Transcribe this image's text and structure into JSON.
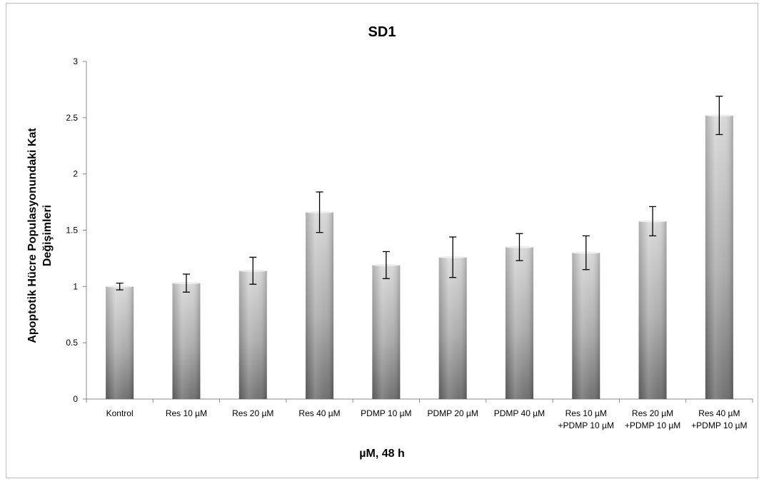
{
  "chart_data": {
    "type": "bar",
    "title": "SD1",
    "xlabel": "µM, 48 h",
    "ylabel_lines": [
      "Apoptotik Hücre Populasyonundaki Kat",
      "Değişimleri"
    ],
    "ylim": [
      0,
      3
    ],
    "yticks": [
      "0",
      "0.5",
      "1",
      "1.5",
      "2",
      "2.5",
      "3"
    ],
    "categories": [
      [
        "Kontrol"
      ],
      [
        "Res 10 µM"
      ],
      [
        "Res 20 µM"
      ],
      [
        "Res 40 µM"
      ],
      [
        "PDMP 10 µM"
      ],
      [
        "PDMP 20 µM"
      ],
      [
        "PDMP 40 µM"
      ],
      [
        "Res 10 µM",
        "+PDMP 10 µM"
      ],
      [
        "Res 20 µM",
        "+PDMP 10 µM"
      ],
      [
        "Res 40 µM",
        "+PDMP 10 µM"
      ]
    ],
    "values": [
      1.0,
      1.03,
      1.14,
      1.66,
      1.19,
      1.26,
      1.35,
      1.3,
      1.58,
      2.52
    ],
    "errors": [
      0.03,
      0.08,
      0.12,
      0.18,
      0.12,
      0.18,
      0.12,
      0.15,
      0.13,
      0.17
    ],
    "grid": false,
    "legend": "none"
  }
}
